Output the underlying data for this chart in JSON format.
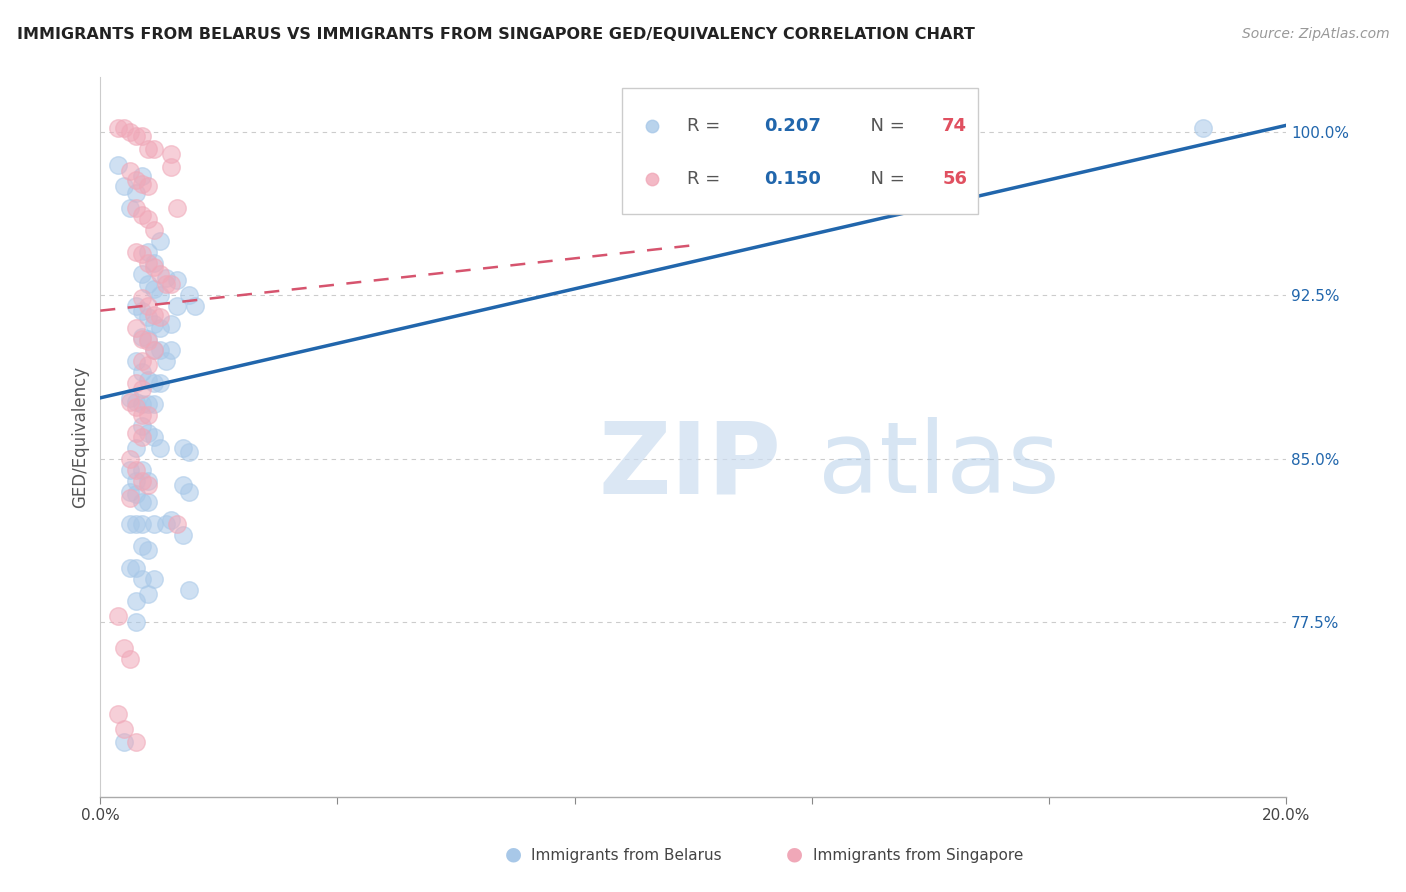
{
  "title": "IMMIGRANTS FROM BELARUS VS IMMIGRANTS FROM SINGAPORE GED/EQUIVALENCY CORRELATION CHART",
  "source": "Source: ZipAtlas.com",
  "ylabel_label": "GED/Equivalency",
  "xlim": [
    0.0,
    0.2
  ],
  "ylim": [
    0.695,
    1.025
  ],
  "yticks": [
    0.775,
    0.85,
    0.925,
    1.0
  ],
  "yticklabels": [
    "77.5%",
    "85.0%",
    "92.5%",
    "100.0%"
  ],
  "legend_r1": "0.207",
  "legend_n1": "74",
  "legend_r2": "0.150",
  "legend_n2": "56",
  "color_blue": "#a8c8e8",
  "color_pink": "#f0a8b8",
  "trendline_blue": [
    [
      0.0,
      0.878
    ],
    [
      0.2,
      1.003
    ]
  ],
  "trendline_pink": [
    [
      0.0,
      0.918
    ],
    [
      0.1,
      0.948
    ]
  ],
  "watermark_zip": "ZIP",
  "watermark_atlas": "atlas",
  "blue_scatter": [
    [
      0.003,
      0.985
    ],
    [
      0.004,
      0.975
    ],
    [
      0.005,
      0.965
    ],
    [
      0.006,
      0.972
    ],
    [
      0.007,
      0.98
    ],
    [
      0.008,
      0.945
    ],
    [
      0.009,
      0.94
    ],
    [
      0.01,
      0.95
    ],
    [
      0.007,
      0.935
    ],
    [
      0.008,
      0.93
    ],
    [
      0.009,
      0.928
    ],
    [
      0.01,
      0.925
    ],
    [
      0.011,
      0.933
    ],
    [
      0.013,
      0.932
    ],
    [
      0.015,
      0.925
    ],
    [
      0.016,
      0.92
    ],
    [
      0.006,
      0.92
    ],
    [
      0.007,
      0.918
    ],
    [
      0.008,
      0.915
    ],
    [
      0.009,
      0.912
    ],
    [
      0.01,
      0.91
    ],
    [
      0.012,
      0.912
    ],
    [
      0.013,
      0.92
    ],
    [
      0.007,
      0.906
    ],
    [
      0.008,
      0.905
    ],
    [
      0.009,
      0.9
    ],
    [
      0.01,
      0.9
    ],
    [
      0.011,
      0.895
    ],
    [
      0.012,
      0.9
    ],
    [
      0.006,
      0.895
    ],
    [
      0.007,
      0.89
    ],
    [
      0.008,
      0.886
    ],
    [
      0.009,
      0.885
    ],
    [
      0.01,
      0.885
    ],
    [
      0.005,
      0.878
    ],
    [
      0.006,
      0.876
    ],
    [
      0.007,
      0.875
    ],
    [
      0.008,
      0.875
    ],
    [
      0.009,
      0.875
    ],
    [
      0.007,
      0.865
    ],
    [
      0.008,
      0.862
    ],
    [
      0.009,
      0.86
    ],
    [
      0.01,
      0.855
    ],
    [
      0.006,
      0.855
    ],
    [
      0.005,
      0.845
    ],
    [
      0.007,
      0.845
    ],
    [
      0.006,
      0.84
    ],
    [
      0.008,
      0.84
    ],
    [
      0.014,
      0.855
    ],
    [
      0.015,
      0.853
    ],
    [
      0.005,
      0.835
    ],
    [
      0.006,
      0.834
    ],
    [
      0.007,
      0.83
    ],
    [
      0.008,
      0.83
    ],
    [
      0.014,
      0.838
    ],
    [
      0.015,
      0.835
    ],
    [
      0.005,
      0.82
    ],
    [
      0.006,
      0.82
    ],
    [
      0.007,
      0.82
    ],
    [
      0.009,
      0.82
    ],
    [
      0.011,
      0.82
    ],
    [
      0.012,
      0.822
    ],
    [
      0.007,
      0.81
    ],
    [
      0.008,
      0.808
    ],
    [
      0.014,
      0.815
    ],
    [
      0.005,
      0.8
    ],
    [
      0.006,
      0.8
    ],
    [
      0.007,
      0.795
    ],
    [
      0.009,
      0.795
    ],
    [
      0.006,
      0.785
    ],
    [
      0.008,
      0.788
    ],
    [
      0.015,
      0.79
    ],
    [
      0.006,
      0.775
    ],
    [
      0.004,
      0.72
    ],
    [
      0.186,
      1.002
    ]
  ],
  "pink_scatter": [
    [
      0.003,
      1.002
    ],
    [
      0.004,
      1.002
    ],
    [
      0.005,
      1.0
    ],
    [
      0.006,
      0.998
    ],
    [
      0.007,
      0.998
    ],
    [
      0.008,
      0.992
    ],
    [
      0.009,
      0.992
    ],
    [
      0.012,
      0.99
    ],
    [
      0.005,
      0.982
    ],
    [
      0.006,
      0.978
    ],
    [
      0.007,
      0.976
    ],
    [
      0.008,
      0.975
    ],
    [
      0.012,
      0.984
    ],
    [
      0.006,
      0.965
    ],
    [
      0.007,
      0.962
    ],
    [
      0.008,
      0.96
    ],
    [
      0.009,
      0.955
    ],
    [
      0.013,
      0.965
    ],
    [
      0.006,
      0.945
    ],
    [
      0.007,
      0.944
    ],
    [
      0.008,
      0.94
    ],
    [
      0.009,
      0.938
    ],
    [
      0.01,
      0.935
    ],
    [
      0.011,
      0.93
    ],
    [
      0.012,
      0.93
    ],
    [
      0.007,
      0.924
    ],
    [
      0.008,
      0.92
    ],
    [
      0.009,
      0.916
    ],
    [
      0.01,
      0.915
    ],
    [
      0.006,
      0.91
    ],
    [
      0.007,
      0.905
    ],
    [
      0.008,
      0.904
    ],
    [
      0.009,
      0.9
    ],
    [
      0.007,
      0.895
    ],
    [
      0.008,
      0.893
    ],
    [
      0.006,
      0.885
    ],
    [
      0.007,
      0.882
    ],
    [
      0.005,
      0.876
    ],
    [
      0.006,
      0.874
    ],
    [
      0.007,
      0.87
    ],
    [
      0.008,
      0.87
    ],
    [
      0.006,
      0.862
    ],
    [
      0.007,
      0.86
    ],
    [
      0.005,
      0.85
    ],
    [
      0.006,
      0.845
    ],
    [
      0.007,
      0.84
    ],
    [
      0.008,
      0.838
    ],
    [
      0.005,
      0.832
    ],
    [
      0.013,
      0.82
    ],
    [
      0.003,
      0.778
    ],
    [
      0.004,
      0.763
    ],
    [
      0.005,
      0.758
    ],
    [
      0.003,
      0.733
    ],
    [
      0.004,
      0.726
    ],
    [
      0.006,
      0.72
    ]
  ]
}
